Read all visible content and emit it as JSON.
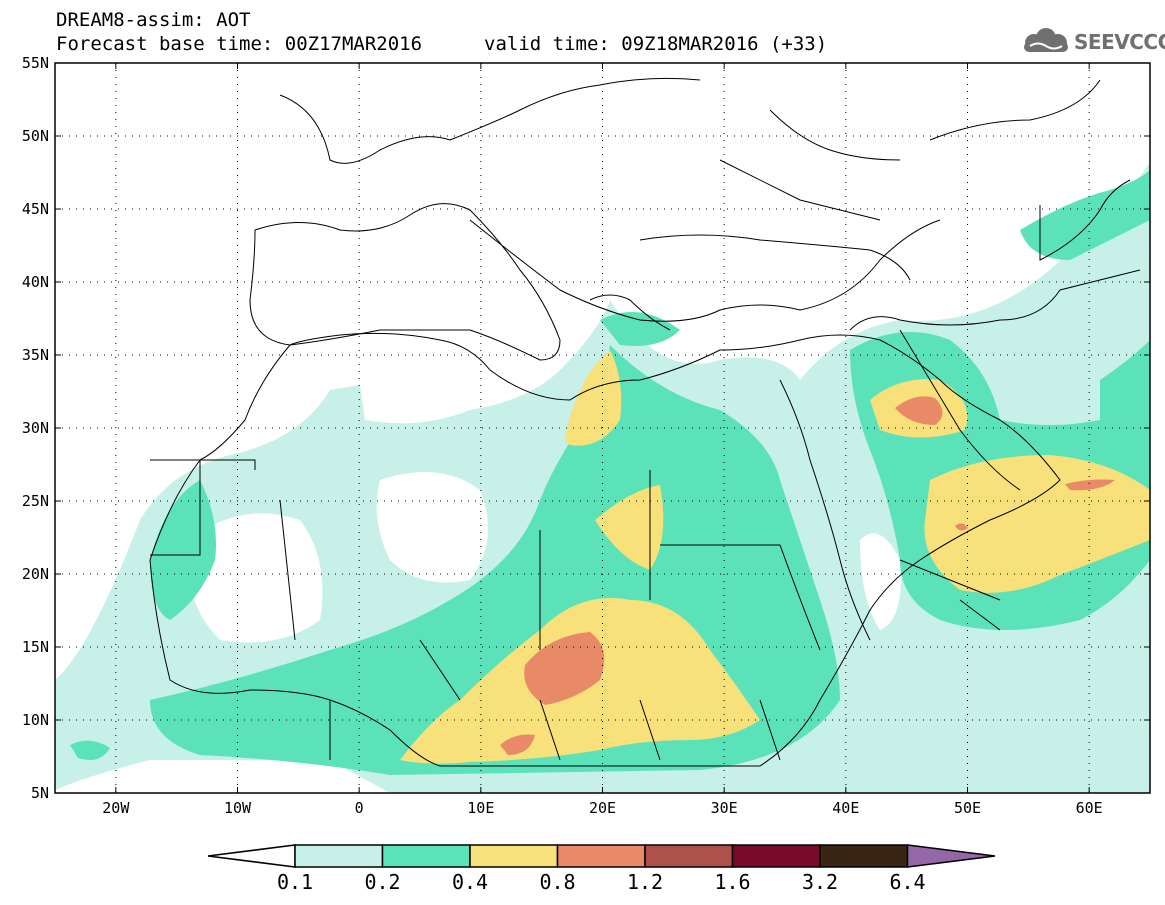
{
  "header": {
    "title": "DREAM8-assim: AOT",
    "base_time": "Forecast base time: 00Z17MAR2016",
    "valid_time": "valid time: 09Z18MAR2016 (+33)",
    "logo": "SEEVCCC"
  },
  "map": {
    "projection": "lat-lon",
    "lon_range": [
      -25,
      65
    ],
    "lat_range": [
      5,
      55
    ],
    "x_ticks": [
      "20W",
      "10W",
      "0",
      "10E",
      "20E",
      "30E",
      "40E",
      "50E",
      "60E"
    ],
    "y_ticks": [
      "55N",
      "50N",
      "45N",
      "40N",
      "35N",
      "30N",
      "25N",
      "20N",
      "15N",
      "10N",
      "5N"
    ],
    "variable": "AOT"
  },
  "legend": {
    "labels": [
      "0.1",
      "0.2",
      "0.4",
      "0.8",
      "1.2",
      "1.6",
      "3.2",
      "6.4"
    ],
    "colors": [
      "#ffffff",
      "#c6f0e8",
      "#5ce2b8",
      "#f8e07a",
      "#e88a68",
      "#b0504a",
      "#7a0a2a",
      "#3a2414",
      "#9468a8"
    ]
  }
}
